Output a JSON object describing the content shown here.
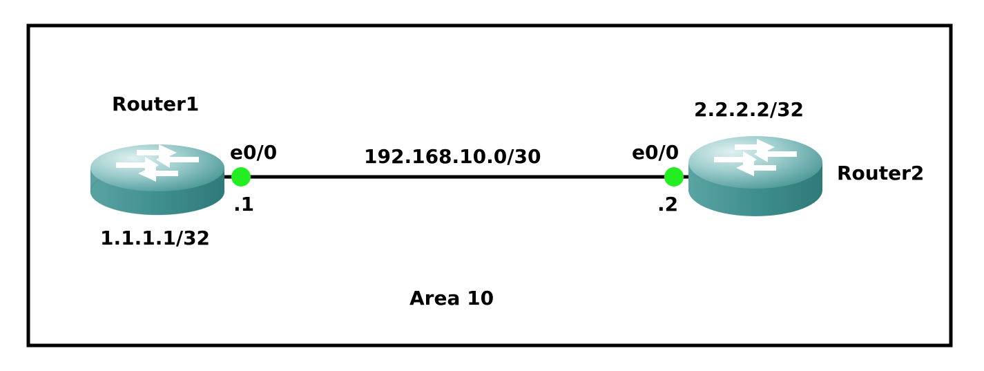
{
  "diagram": {
    "area_label": "Area 10",
    "link": {
      "subnet": "192.168.10.0/30"
    },
    "router1": {
      "name": "Router1",
      "loopback": "1.1.1.1/32",
      "interface": "e0/0",
      "host_address": ".1"
    },
    "router2": {
      "name": "Router2",
      "loopback": "2.2.2.2/32",
      "interface": "e0/0",
      "host_address": ".2"
    }
  },
  "colors": {
    "router_top": "#8fc2c2",
    "router_body": "#3f8f8f",
    "interface_up": "#22ee22",
    "link": "#000000",
    "frame": "#000000"
  },
  "icons": {
    "router": "router-icon",
    "interface_status": "interface-up-dot"
  }
}
